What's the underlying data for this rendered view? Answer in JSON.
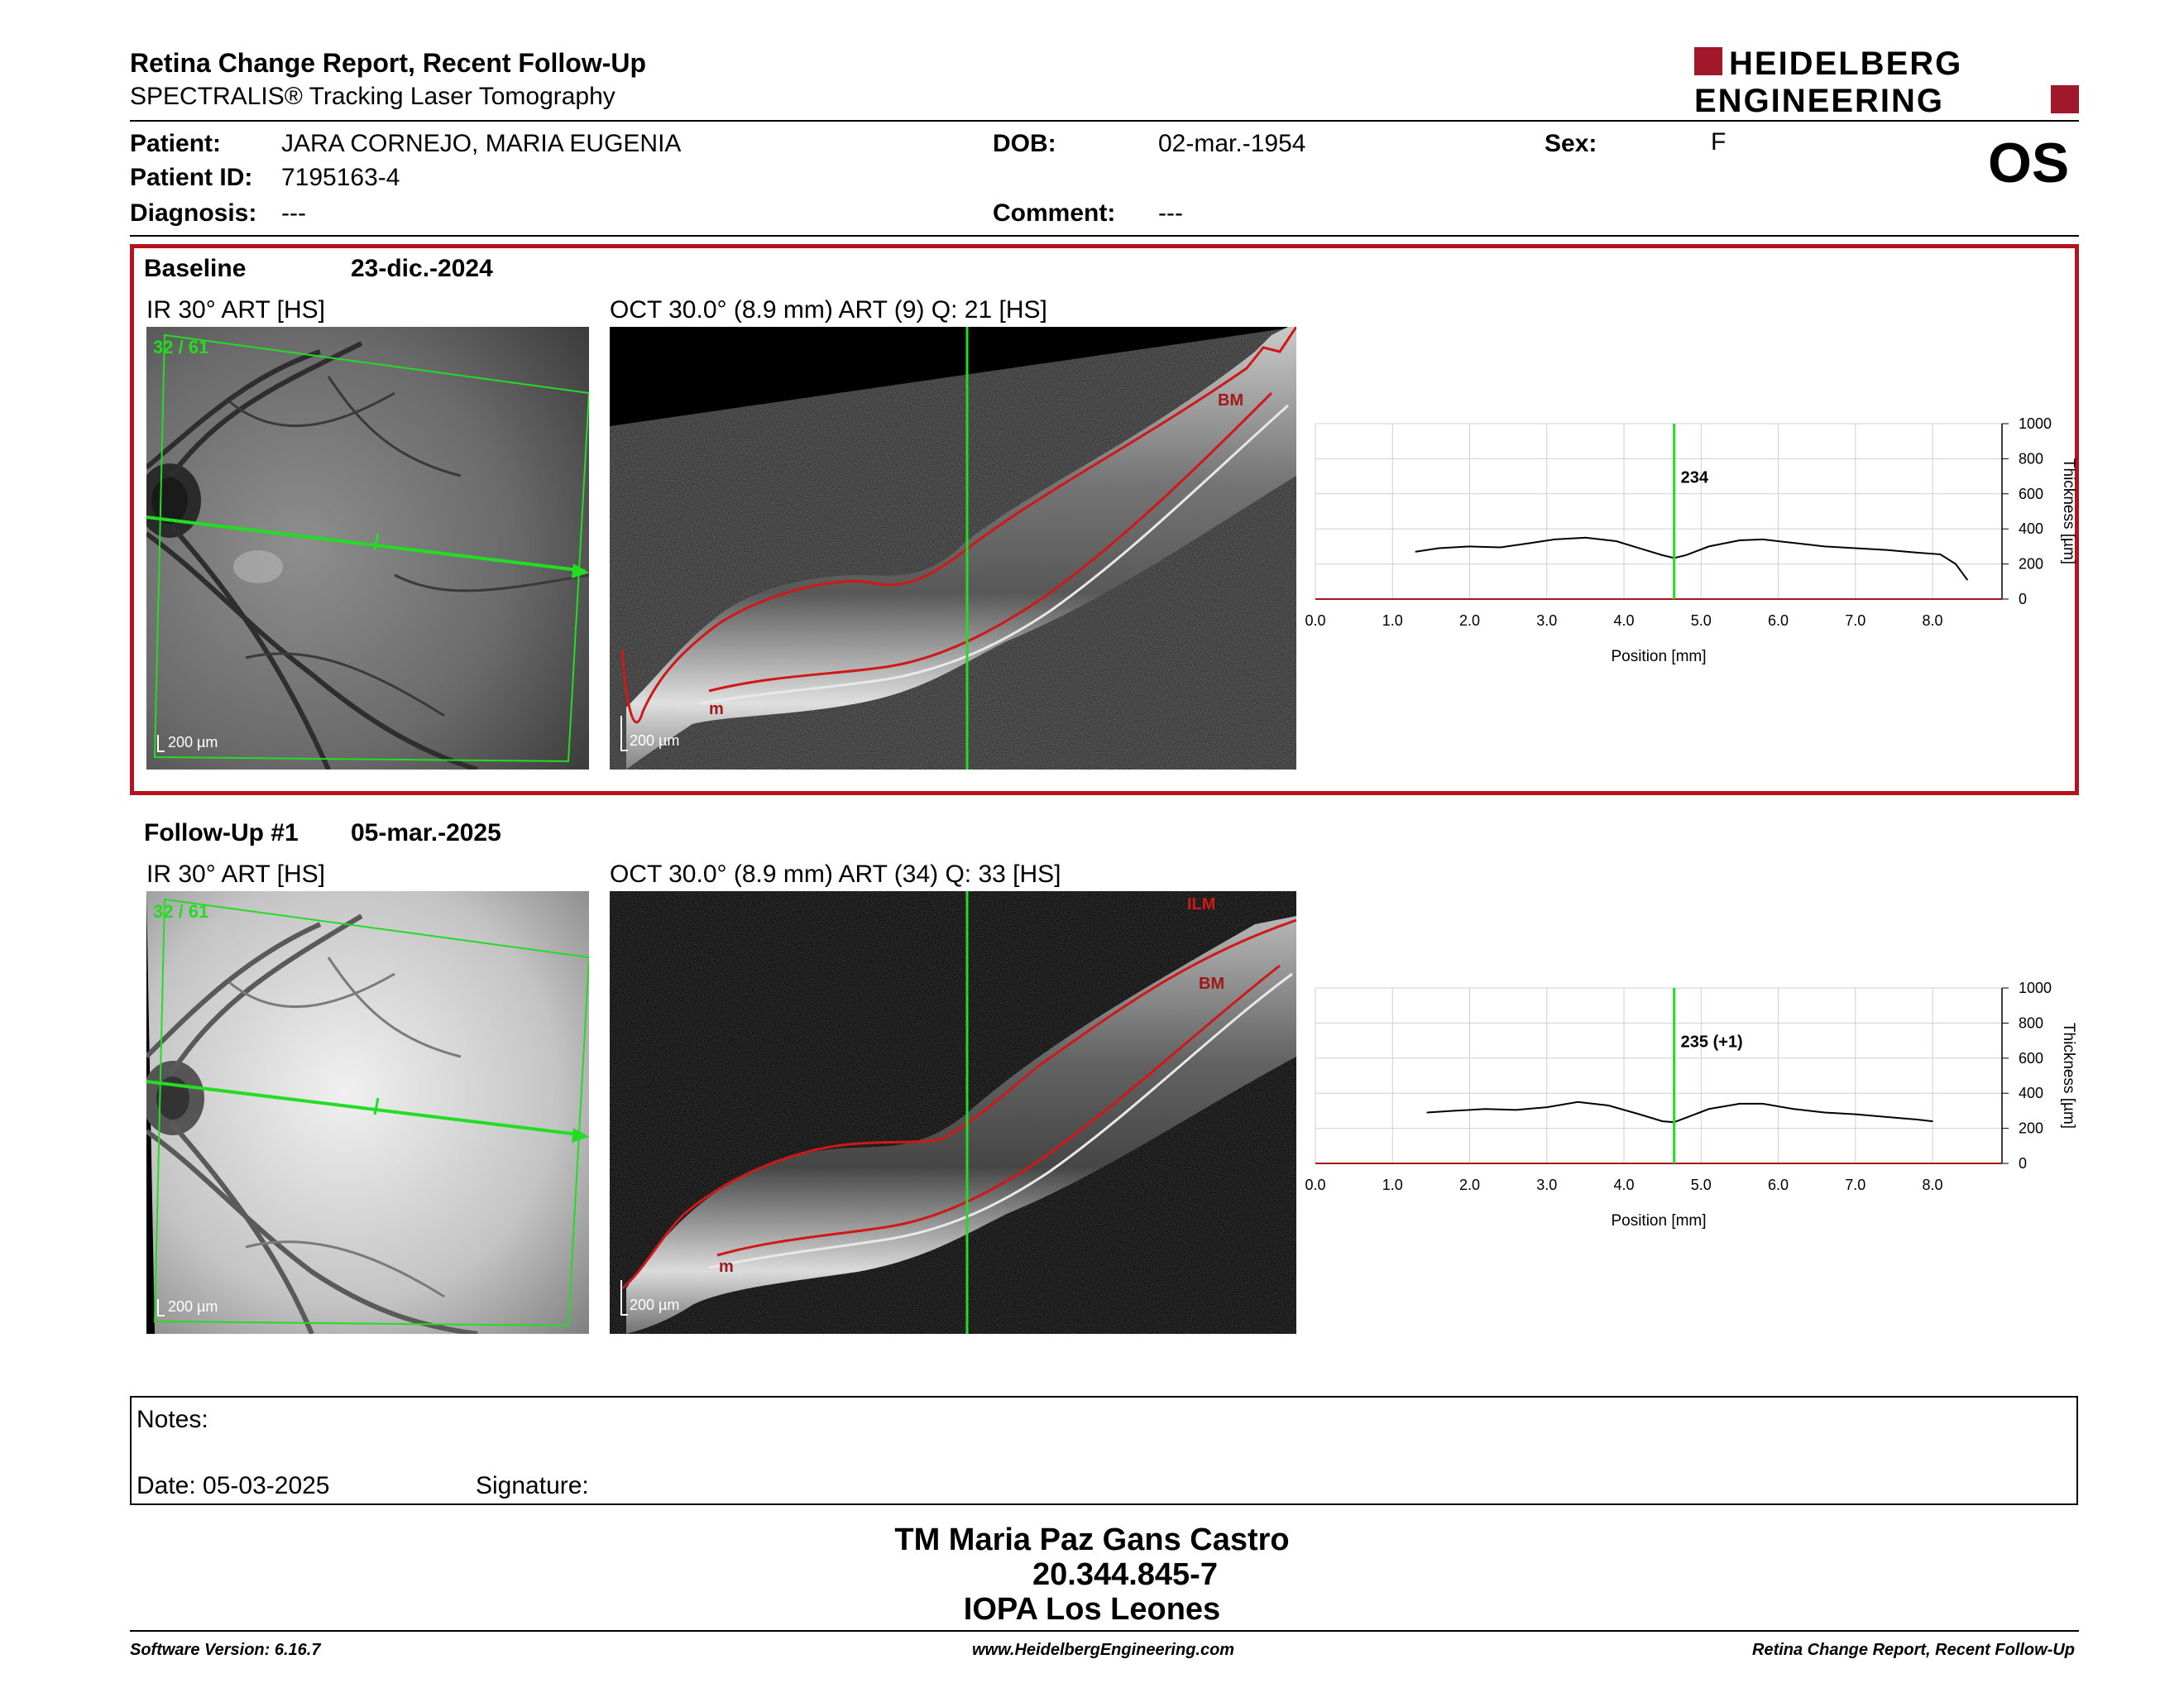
{
  "header": {
    "title": "Retina Change Report, Recent Follow-Up",
    "subtitle": "SPECTRALIS® Tracking Laser Tomography",
    "logo_line1": "HEIDELBERG",
    "logo_line2": "ENGINEERING",
    "eye": "OS"
  },
  "patient": {
    "patient_label": "Patient:",
    "patient_value": "JARA CORNEJO, MARIA EUGENIA",
    "id_label": "Patient ID:",
    "id_value": "7195163-4",
    "diagnosis_label": "Diagnosis:",
    "diagnosis_value": "---",
    "dob_label": "DOB:",
    "dob_value": "02-mar.-1954",
    "comment_label": "Comment:",
    "comment_value": "---",
    "sex_label": "Sex:",
    "sex_value": "F"
  },
  "colors": {
    "frame_red": "#b3121e",
    "scan_green": "#22dd22",
    "layer_red": "#d01818"
  },
  "baseline": {
    "label": "Baseline",
    "date": "23-dic.-2024",
    "ir_title": "IR 30° ART [HS]",
    "ir_counter": "32 / 61",
    "ir_scale": "200 µm",
    "oct_title": "OCT 30.0° (8.9 mm) ART (9) Q: 21 [HS]",
    "oct_scale": "200 µm",
    "oct_label_bm": "BM",
    "oct_label_m": "m"
  },
  "followup": {
    "label": "Follow-Up #1",
    "date": "05-mar.-2025",
    "ir_title": "IR 30° ART [HS]",
    "ir_counter": "32 / 61",
    "ir_scale": "200 µm",
    "oct_title": "OCT 30.0° (8.9 mm) ART (34) Q: 33 [HS]",
    "oct_scale": "200 µm",
    "oct_label_ilm": "ILM",
    "oct_label_bm": "BM",
    "oct_label_m": "m"
  },
  "chart_data": [
    {
      "type": "line",
      "xlabel": "Position [mm]",
      "ylabel": "Thickness [µm]",
      "xlim": [
        0,
        8.9
      ],
      "ylim": [
        0,
        1000
      ],
      "xticks": [
        "0.0",
        "1.0",
        "2.0",
        "3.0",
        "4.0",
        "5.0",
        "6.0",
        "7.0",
        "8.0"
      ],
      "yticks": [
        "0",
        "200",
        "400",
        "600",
        "800",
        "1000"
      ],
      "marker_x": 4.65,
      "marker_label": "234",
      "series": [
        {
          "x": [
            1.3,
            1.6,
            2.0,
            2.4,
            2.8,
            3.1,
            3.5,
            3.9,
            4.2,
            4.5,
            4.65,
            4.8,
            5.1,
            5.5,
            5.8,
            6.2,
            6.6,
            7.0,
            7.4,
            7.8,
            8.1,
            8.3,
            8.45
          ],
          "values": [
            270,
            290,
            300,
            295,
            320,
            340,
            350,
            330,
            290,
            250,
            234,
            250,
            300,
            335,
            340,
            320,
            300,
            290,
            280,
            265,
            255,
            200,
            110
          ]
        }
      ]
    },
    {
      "type": "line",
      "xlabel": "Position [mm]",
      "ylabel": "Thickness [µm]",
      "xlim": [
        0,
        8.9
      ],
      "ylim": [
        0,
        1000
      ],
      "xticks": [
        "0.0",
        "1.0",
        "2.0",
        "3.0",
        "4.0",
        "5.0",
        "6.0",
        "7.0",
        "8.0"
      ],
      "yticks": [
        "0",
        "200",
        "400",
        "600",
        "800",
        "1000"
      ],
      "marker_x": 4.65,
      "marker_label": "235 (+1)",
      "series": [
        {
          "x": [
            1.45,
            1.8,
            2.2,
            2.6,
            3.0,
            3.4,
            3.8,
            4.2,
            4.5,
            4.65,
            4.8,
            5.1,
            5.5,
            5.8,
            6.2,
            6.6,
            7.0,
            7.4,
            7.8,
            8.0
          ],
          "values": [
            290,
            300,
            310,
            305,
            320,
            350,
            330,
            280,
            240,
            235,
            260,
            310,
            340,
            340,
            310,
            290,
            280,
            265,
            250,
            240
          ]
        }
      ]
    }
  ],
  "notes": {
    "notes_label": "Notes:",
    "date_label": "Date: 05-03-2025",
    "signature_label": "Signature:"
  },
  "signature_block": {
    "name": "TM Maria Paz Gans Castro",
    "id": "20.344.845-7",
    "org": "IOPA Los Leones"
  },
  "footer": {
    "software": "Software Version: 6.16.7",
    "website": "www.HeidelbergEngineering.com",
    "report": "Retina Change Report, Recent Follow-Up"
  }
}
